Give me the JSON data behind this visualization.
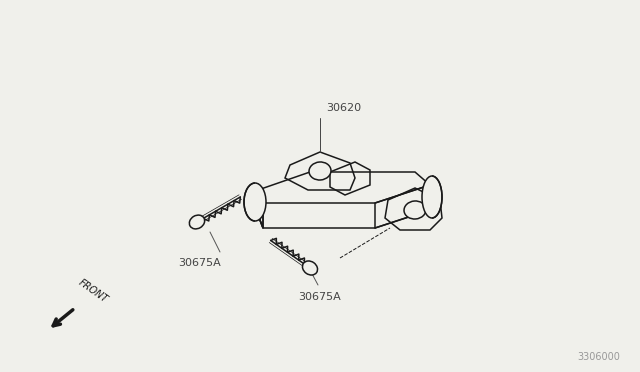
{
  "bg_color": "#f0f0eb",
  "line_color": "#1a1a1a",
  "label_color": "#444444",
  "part_label_30620": "30620",
  "part_label_30675A_1": "30675A",
  "part_label_30675A_2": "30675A",
  "watermark": "3306000",
  "front_label": "FRONT",
  "figw": 6.4,
  "figh": 3.72,
  "dpi": 100
}
